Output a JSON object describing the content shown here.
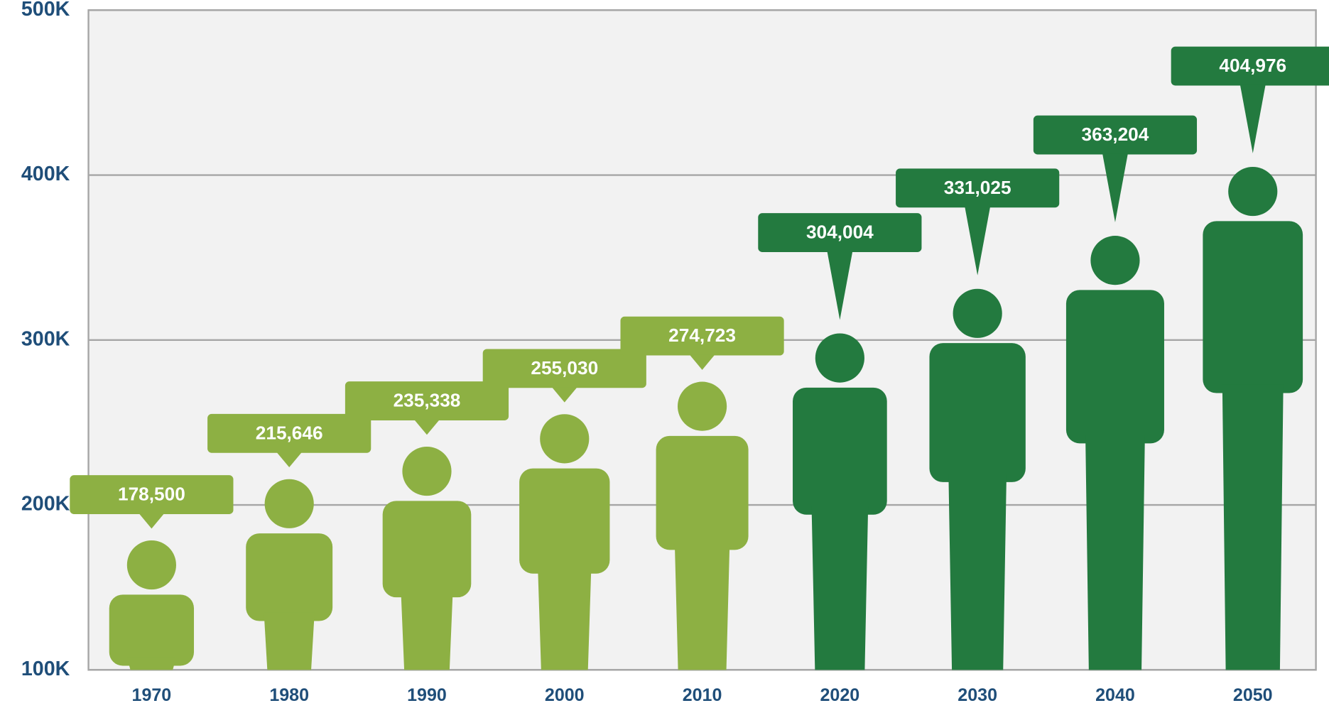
{
  "chart_data": {
    "type": "pictograph",
    "categories": [
      "1970",
      "1980",
      "1990",
      "2000",
      "2010",
      "2020",
      "2030",
      "2040",
      "2050"
    ],
    "values": [
      178500,
      215646,
      235338,
      255030,
      274723,
      304004,
      331025,
      363204,
      404976
    ],
    "value_labels": [
      "178,500",
      "215,646",
      "235,338",
      "255,030",
      "274,723",
      "304,004",
      "331,025",
      "363,204",
      "404,976"
    ],
    "colors": [
      "#8db043",
      "#8db043",
      "#8db043",
      "#8db043",
      "#8db043",
      "#237a3f",
      "#237a3f",
      "#237a3f",
      "#237a3f"
    ],
    "ylim": [
      100000,
      500000
    ],
    "yticks": [
      {
        "value": 100000,
        "label": "100K"
      },
      {
        "value": 200000,
        "label": "200K"
      },
      {
        "value": 300000,
        "label": "300K"
      },
      {
        "value": 400000,
        "label": "400K"
      },
      {
        "value": 500000,
        "label": "500K"
      }
    ],
    "grid": true
  }
}
